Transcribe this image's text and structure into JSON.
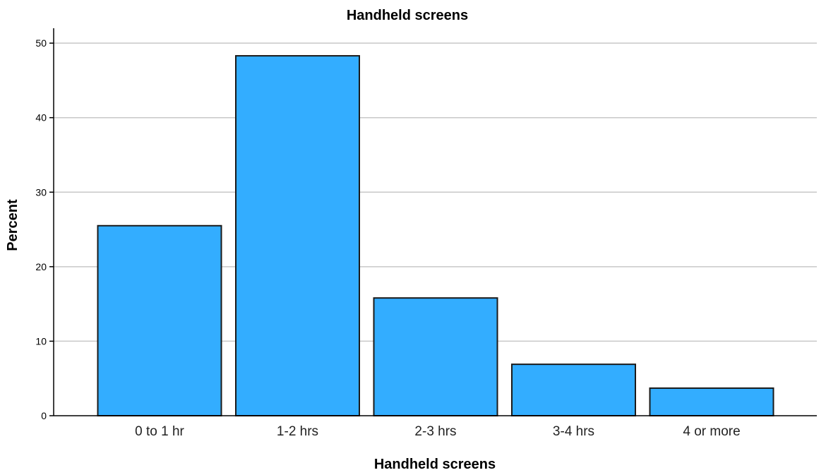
{
  "chart_data": {
    "type": "bar",
    "title": "Handheld screens",
    "xlabel": "Handheld screens",
    "ylabel": "Percent",
    "categories": [
      "0 to 1 hr",
      "1-2 hrs",
      "2-3 hrs",
      "3-4 hrs",
      "4 or more"
    ],
    "values": [
      25.5,
      48.3,
      15.8,
      6.9,
      3.7
    ],
    "ylim": [
      0,
      52
    ],
    "yticks": [
      0,
      10,
      20,
      30,
      40,
      50
    ],
    "grid": true,
    "bar_color": "#33adff"
  }
}
